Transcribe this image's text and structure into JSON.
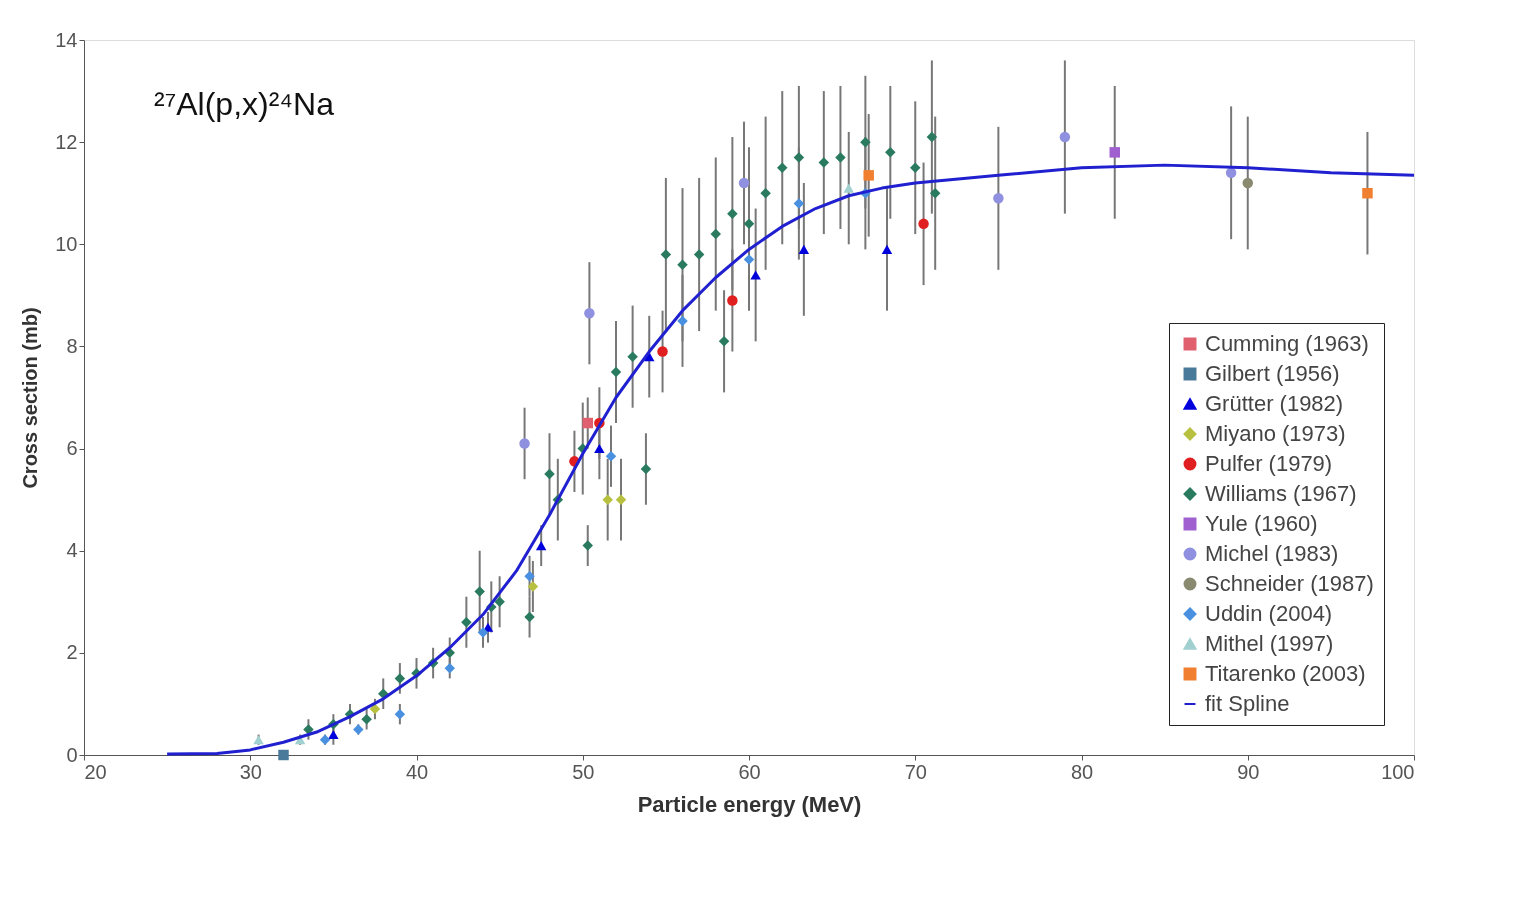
{
  "chart_data": {
    "type": "scatter",
    "xlabel": "Particle energy (MeV)",
    "ylabel": "Cross section (mb)",
    "annotations": [
      "²⁷Al(p,x)²⁴Na"
    ],
    "xlim": [
      20,
      100
    ],
    "xticks": [
      20,
      30,
      40,
      50,
      60,
      70,
      80,
      90,
      100
    ],
    "ylim": [
      0,
      14
    ],
    "yticks": [
      0,
      2,
      4,
      6,
      8,
      10,
      12,
      14
    ],
    "grid": false,
    "legend": "bottom right",
    "series": [
      {
        "name": "Cumming (1963)",
        "color": "#e06070",
        "marker": "square",
        "x": [
          50.3
        ],
        "values": [
          6.5
        ],
        "errors": [
          0.5
        ]
      },
      {
        "name": "Gilbert (1956)",
        "color": "#4a7a9a",
        "marker": "square",
        "x": [
          32.0
        ],
        "values": [
          0.0
        ],
        "errors": [
          null
        ]
      },
      {
        "name": "Grütter (1982)",
        "color": "#0000dd",
        "marker": "triangle",
        "x": [
          35.0,
          44.3,
          47.5,
          51.0,
          54.0,
          60.4,
          63.3,
          68.3
        ],
        "values": [
          0.4,
          2.5,
          4.1,
          6.0,
          7.8,
          9.4,
          9.9,
          9.9
        ],
        "errors": [
          0.2,
          0.3,
          0.4,
          0.6,
          0.8,
          1.3,
          1.3,
          1.2
        ]
      },
      {
        "name": "Miyano (1973)",
        "color": "#b8c040",
        "marker": "diamond",
        "x": [
          37.5,
          47.0,
          51.5,
          52.3
        ],
        "values": [
          0.9,
          3.3,
          5.0,
          5.0
        ],
        "errors": [
          0.2,
          0.5,
          0.8,
          0.8
        ]
      },
      {
        "name": "Pulfer (1979)",
        "color": "#e02020",
        "marker": "circle",
        "x": [
          49.5,
          51.0,
          54.8,
          59.0,
          70.5
        ],
        "values": [
          5.75,
          6.5,
          7.9,
          8.9,
          10.4
        ],
        "errors": [
          0.6,
          0.7,
          0.8,
          1.0,
          1.2
        ]
      },
      {
        "name": "Williams (1967)",
        "color": "#2a7a60",
        "marker": "diamond",
        "x": [
          33.5,
          35.0,
          36.0,
          37.0,
          38.0,
          39.0,
          40.0,
          41.0,
          42.0,
          43.0,
          43.8,
          44.5,
          45.0,
          46.8,
          48.0,
          48.5,
          50.0,
          50.3,
          52.0,
          53.0,
          53.8,
          55.0,
          56.0,
          57.0,
          58.0,
          58.5,
          59.0,
          60.0,
          61.0,
          62.0,
          63.0,
          64.5,
          65.5,
          67.0,
          68.5,
          70.0,
          71.0,
          71.2
        ],
        "values": [
          0.5,
          0.6,
          0.8,
          0.7,
          1.2,
          1.5,
          1.6,
          1.8,
          2.0,
          2.6,
          3.2,
          2.9,
          3.0,
          2.7,
          5.5,
          5.0,
          6.0,
          4.1,
          7.5,
          7.8,
          5.6,
          9.8,
          9.6,
          9.8,
          10.2,
          8.1,
          10.6,
          10.4,
          11.0,
          11.5,
          11.7,
          11.6,
          11.7,
          12.0,
          11.8,
          11.5,
          12.1,
          11.0
        ],
        "errors": [
          0.2,
          0.2,
          0.2,
          0.2,
          0.3,
          0.3,
          0.3,
          0.3,
          0.3,
          0.5,
          0.8,
          0.5,
          0.5,
          0.4,
          0.8,
          0.8,
          0.9,
          0.4,
          1.0,
          1.0,
          0.7,
          1.5,
          1.5,
          1.5,
          1.5,
          1.0,
          1.5,
          1.5,
          1.5,
          1.5,
          1.4,
          1.4,
          1.4,
          1.3,
          1.3,
          1.3,
          1.5,
          1.5
        ]
      },
      {
        "name": "Yule (1960)",
        "color": "#a060d0",
        "marker": "square",
        "x": [
          82.0
        ],
        "values": [
          11.8
        ],
        "errors": [
          1.3
        ]
      },
      {
        "name": "Michel (1983)",
        "color": "#9090e0",
        "marker": "circle",
        "x": [
          46.5,
          50.4,
          59.7,
          75.0,
          79.0,
          89.0
        ],
        "values": [
          6.1,
          8.65,
          11.2,
          10.9,
          12.1,
          11.4
        ],
        "errors": [
          0.7,
          1.0,
          1.2,
          1.4,
          1.5,
          1.3
        ]
      },
      {
        "name": "Schneider (1987)",
        "color": "#8a8a70",
        "marker": "circle",
        "x": [
          90.0
        ],
        "values": [
          11.2
        ],
        "errors": [
          1.3
        ]
      },
      {
        "name": "Uddin (2004)",
        "color": "#4a90e0",
        "marker": "diamond",
        "x": [
          34.5,
          36.5,
          39.0,
          42.0,
          44.0,
          46.8,
          51.7,
          56.0,
          60.0,
          63.0,
          67.0
        ],
        "values": [
          0.3,
          0.5,
          0.8,
          1.7,
          2.4,
          3.5,
          5.85,
          8.5,
          9.7,
          10.8,
          11.0
        ],
        "errors": [
          0.1,
          0.1,
          0.2,
          0.2,
          0.3,
          0.4,
          0.6,
          0.9,
          1.0,
          1.1,
          1.1
        ]
      },
      {
        "name": "Mithel (1997)",
        "color": "#a0d0d0",
        "marker": "triangle",
        "x": [
          30.5,
          33.0,
          66.0
        ],
        "values": [
          0.3,
          0.3,
          11.1
        ],
        "errors": [
          0.1,
          0.1,
          1.1
        ]
      },
      {
        "name": "Titarenko (2003)",
        "color": "#f08030",
        "marker": "square",
        "x": [
          67.2,
          97.2
        ],
        "values": [
          11.35,
          11.0
        ],
        "errors": [
          1.2,
          1.2
        ]
      },
      {
        "name": "fit Spline",
        "type": "line",
        "color": "#2020d0",
        "x": [
          25,
          28,
          30,
          32,
          34,
          36,
          38,
          40,
          42,
          44,
          46,
          48,
          50,
          52,
          54,
          56,
          58,
          60,
          62,
          64,
          66,
          68,
          70,
          75,
          80,
          85,
          90,
          95,
          100
        ],
        "values": [
          0.02,
          0.03,
          0.1,
          0.25,
          0.45,
          0.75,
          1.1,
          1.55,
          2.1,
          2.75,
          3.6,
          4.7,
          5.9,
          7.0,
          7.9,
          8.7,
          9.35,
          9.9,
          10.35,
          10.7,
          10.95,
          11.1,
          11.2,
          11.35,
          11.5,
          11.55,
          11.5,
          11.4,
          11.35
        ]
      }
    ]
  }
}
